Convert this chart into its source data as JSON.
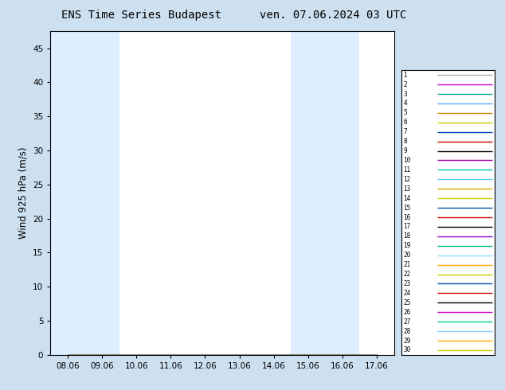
{
  "title_left": "ENS Time Series Budapest",
  "title_right": "ven. 07.06.2024 03 UTC",
  "ylabel": "Wind 925 hPa (m/s)",
  "ylim": [
    0,
    47.5
  ],
  "yticks": [
    0,
    5,
    10,
    15,
    20,
    25,
    30,
    35,
    40,
    45
  ],
  "x_labels": [
    "08.06",
    "09.06",
    "10.06",
    "11.06",
    "12.06",
    "13.06",
    "14.06",
    "15.06",
    "16.06",
    "17.06"
  ],
  "x_positions": [
    0,
    1,
    2,
    3,
    4,
    5,
    6,
    7,
    8,
    9
  ],
  "num_members": 30,
  "member_colors": [
    "#aaaaaa",
    "#cc00cc",
    "#00aa88",
    "#55aaff",
    "#cc8800",
    "#cccc00",
    "#0044bb",
    "#cc0000",
    "#000000",
    "#aa00aa",
    "#00ccaa",
    "#55ccff",
    "#ddaa00",
    "#cccc00",
    "#0055aa",
    "#cc0000",
    "#000000",
    "#8800cc",
    "#00bb88",
    "#88ddff",
    "#ffaa00",
    "#cccc00",
    "#0055aa",
    "#cc0000",
    "#000000",
    "#cc00cc",
    "#00cc88",
    "#88ccff",
    "#ffaa00",
    "#cccc00"
  ],
  "band_color": "#ddeeff",
  "plot_bg": "#ffffff",
  "fig_bg": "#cce0f0",
  "title_fontsize": 10,
  "legend_fontsize": 6
}
